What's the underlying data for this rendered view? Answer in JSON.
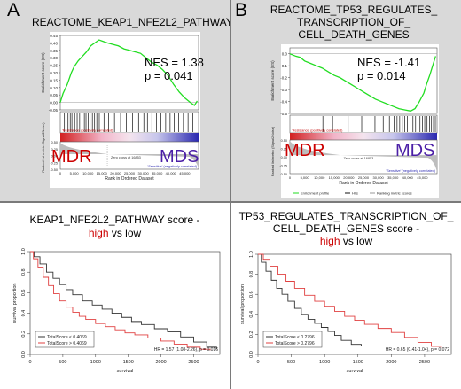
{
  "panels": {
    "A": {
      "letter": "A",
      "gsea": {
        "title": "REACTOME_KEAP1_NFE2L2_PATHWAY",
        "nes": "NES = 1.38",
        "p": "p = 0.041",
        "ylabel": "Enrichment score (ES)",
        "ylabel2": "Ranked list metric (Signal2Noise)",
        "xlabel": "Rank in Ordered Dataset",
        "pos_corr": "'Resistance' (positively correlated)",
        "neg_corr": "'Sensitive' (negatively correlated)",
        "zero_cross": "Zero cross at 16853",
        "left_group": "MDR",
        "right_group": "MDS",
        "yticks": [
          "0.45",
          "0.40",
          "0.35",
          "0.30",
          "0.25",
          "0.20",
          "0.15",
          "0.10",
          "0.05",
          "0.00",
          "-0.05"
        ],
        "y2ticks": [
          "0.50",
          "0.25",
          "0.00",
          "-0.25",
          "-0.50"
        ],
        "xticks": [
          "0",
          "5,000",
          "10,000",
          "15,000",
          "20,000",
          "25,000",
          "30,000",
          "35,000",
          "40,000",
          "45,000"
        ]
      },
      "km": {
        "title_line1": "KEAP1_NFE2L2_PATHWAY score -",
        "title_high": "high",
        "title_low": " vs low",
        "ylabel": "survival proportion",
        "xlabel": "survival",
        "legend": [
          "TotalScore < 0.4069",
          "TotalScore > 0.4069"
        ],
        "hr": "HR = 1.57 (1.08-2.26), p = 0.016",
        "xticks": [
          "0",
          "500",
          "1000",
          "1500",
          "2000",
          "2500"
        ],
        "yticks": [
          "0.0",
          "0.2",
          "0.4",
          "0.6",
          "0.8",
          "1.0"
        ]
      }
    },
    "B": {
      "letter": "B",
      "gsea": {
        "title_lines": [
          "REACTOME_TP53_REGULATES_",
          "TRANSCRIPTION_OF_",
          "CELL_DEATH_GENES"
        ],
        "nes": "NES = -1.41",
        "p": "p = 0.014",
        "ylabel": "Enrichment score (ES)",
        "ylabel2": "Ranked list metric (Signal2Noise)",
        "xlabel": "Rank in Ordered Dataset",
        "pos_corr": "'Resistance' (positively correlated)",
        "neg_corr": "'Sensitive' (negatively correlated)",
        "zero_cross": "Zero cross at 16853",
        "left_group": "MDR",
        "right_group": "MDS",
        "legend": [
          "Enrichment profile",
          "Hits",
          "Ranking metric scores"
        ],
        "yticks": [
          "0.0",
          "-0.1",
          "-0.2",
          "-0.3",
          "-0.4",
          "-0.5"
        ],
        "y2ticks": [
          "0.50",
          "0.25",
          "0.00",
          "-0.25",
          "-0.50"
        ],
        "xticks": [
          "0",
          "5,000",
          "10,000",
          "15,000",
          "20,000",
          "25,000",
          "30,000",
          "35,000",
          "40,000",
          "45,000"
        ]
      },
      "km": {
        "title_line1": "TP53_REGULATES_TRANSCRIPTION_OF_",
        "title_line2": "CELL_DEATH_GENES score -",
        "title_high": "high",
        "title_low": " vs low",
        "ylabel": "survival proportion",
        "xlabel": "survival",
        "legend": [
          "TotalScore < 0.2796",
          "TotalScore > 0.2796"
        ],
        "hr": "HR = 0.65 (0.41-1.04), p = 0.072",
        "xticks": [
          "0",
          "500",
          "1000",
          "1500",
          "2000",
          "2500"
        ],
        "yticks": [
          "0.0",
          "0.2",
          "0.4",
          "0.6",
          "0.8",
          "1.0"
        ]
      }
    }
  },
  "colors": {
    "enrichment": "#22dd22",
    "high": "#cc0000",
    "mds": "#4b1fa6",
    "low_curve": "#333333",
    "high_curve": "#e04040",
    "panel_bg": "#d9d9d9"
  },
  "chart_data": [
    {
      "type": "line",
      "title": "REACTOME_KEAP1_NFE2L2_PATHWAY",
      "xlabel": "Rank in Ordered Dataset",
      "ylabel": "Enrichment score (ES)",
      "xlim": [
        0,
        50000
      ],
      "ylim": [
        -0.05,
        0.45
      ],
      "series": [
        {
          "name": "Enrichment profile",
          "x": [
            0,
            1000,
            2500,
            4000,
            5000,
            6500,
            8000,
            9500,
            11000,
            12500,
            14000,
            15500,
            17000,
            19000,
            21000,
            23000,
            25000,
            27000,
            29000,
            31000,
            33000,
            35000,
            37000,
            39000,
            41000,
            43000,
            45000,
            47000,
            48500,
            49500
          ],
          "y": [
            0.0,
            0.06,
            0.12,
            0.2,
            0.24,
            0.28,
            0.31,
            0.34,
            0.38,
            0.4,
            0.42,
            0.41,
            0.4,
            0.39,
            0.38,
            0.36,
            0.35,
            0.34,
            0.33,
            0.3,
            0.27,
            0.25,
            0.22,
            0.18,
            0.12,
            0.07,
            0.03,
            0.0,
            -0.02,
            0.01
          ]
        }
      ],
      "hits_x": [
        1500,
        2800,
        3600,
        4200,
        5200,
        6100,
        7000,
        7800,
        8700,
        9300,
        10100,
        10800,
        11600,
        12400,
        13200,
        14100,
        15800,
        17500,
        19600,
        21800,
        23900,
        26100,
        28300,
        30200,
        31500,
        33100,
        34800,
        36400,
        38100,
        39700,
        41200,
        42800,
        44500,
        46200,
        47900
      ]
    },
    {
      "type": "line",
      "title": "REACTOME_TP53_REGULATES_TRANSCRIPTION_OF_CELL_DEATH_GENES",
      "xlabel": "Rank in Ordered Dataset",
      "ylabel": "Enrichment score (ES)",
      "xlim": [
        0,
        50000
      ],
      "ylim": [
        -0.5,
        0.05
      ],
      "series": [
        {
          "name": "Enrichment profile",
          "x": [
            0,
            1000,
            2000,
            3500,
            5000,
            7000,
            9000,
            11000,
            13000,
            15000,
            17000,
            19000,
            21000,
            23000,
            25000,
            27000,
            29000,
            31000,
            33000,
            35000,
            37000,
            39000,
            41000,
            42500,
            44000,
            45500,
            46500,
            47500,
            48500,
            49500
          ],
          "y": [
            0.0,
            -0.01,
            -0.02,
            -0.03,
            -0.06,
            -0.08,
            -0.1,
            -0.12,
            -0.15,
            -0.18,
            -0.2,
            -0.23,
            -0.26,
            -0.29,
            -0.32,
            -0.35,
            -0.38,
            -0.4,
            -0.42,
            -0.44,
            -0.46,
            -0.47,
            -0.48,
            -0.46,
            -0.4,
            -0.33,
            -0.25,
            -0.18,
            -0.1,
            -0.02
          ]
        }
      ],
      "hits_x": [
        3800,
        11200,
        14500,
        19800,
        24400,
        28900,
        31700,
        33800,
        35400,
        36400,
        37300,
        38200,
        39000,
        39900,
        40800,
        41800,
        42700,
        43500,
        44200,
        45000,
        45800,
        46600,
        47400,
        48100,
        48800,
        49400
      ]
    },
    {
      "type": "line",
      "title": "KEAP1_NFE2L2_PATHWAY score - high vs low",
      "xlabel": "survival",
      "ylabel": "survival proportion",
      "xlim": [
        0,
        2900
      ],
      "ylim": [
        0,
        1
      ],
      "series": [
        {
          "name": "TotalScore < 0.4069",
          "x": [
            0,
            60,
            150,
            250,
            350,
            450,
            550,
            650,
            800,
            950,
            1100,
            1250,
            1400,
            1550,
            1700,
            1900,
            2100,
            2300,
            2500,
            2700,
            2850
          ],
          "y": [
            1.0,
            0.95,
            0.88,
            0.8,
            0.74,
            0.68,
            0.63,
            0.58,
            0.52,
            0.48,
            0.44,
            0.4,
            0.36,
            0.32,
            0.29,
            0.25,
            0.22,
            0.17,
            0.12,
            0.07,
            0.05
          ]
        },
        {
          "name": "TotalScore > 0.4069",
          "x": [
            0,
            50,
            120,
            200,
            280,
            360,
            450,
            550,
            650,
            750,
            850,
            1000,
            1150,
            1300,
            1450,
            1600,
            1800,
            2000,
            2200,
            2400,
            2600,
            2750
          ],
          "y": [
            1.0,
            0.93,
            0.85,
            0.75,
            0.67,
            0.59,
            0.52,
            0.46,
            0.41,
            0.37,
            0.34,
            0.3,
            0.27,
            0.24,
            0.21,
            0.19,
            0.16,
            0.13,
            0.1,
            0.07,
            0.05,
            0.04
          ]
        }
      ]
    },
    {
      "type": "line",
      "title": "TP53_REGULATES_TRANSCRIPTION_OF_CELL_DEATH_GENES score - high vs low",
      "xlabel": "survival",
      "ylabel": "survival proportion",
      "xlim": [
        0,
        2900
      ],
      "ylim": [
        0,
        1
      ],
      "series": [
        {
          "name": "TotalScore < 0.2796",
          "x": [
            0,
            50,
            120,
            200,
            280,
            360,
            450,
            550,
            650,
            750,
            850,
            950,
            1050,
            1150,
            1250,
            1400,
            1550
          ],
          "y": [
            1.0,
            0.92,
            0.83,
            0.74,
            0.66,
            0.6,
            0.53,
            0.46,
            0.4,
            0.35,
            0.31,
            0.27,
            0.23,
            0.19,
            0.14,
            0.1,
            0.08
          ]
        },
        {
          "name": "TotalScore > 0.2796",
          "x": [
            0,
            80,
            180,
            300,
            420,
            550,
            700,
            850,
            1000,
            1150,
            1300,
            1450,
            1600,
            1800,
            2000,
            2200,
            2400,
            2600,
            2750
          ],
          "y": [
            1.0,
            0.95,
            0.88,
            0.8,
            0.73,
            0.66,
            0.59,
            0.53,
            0.48,
            0.43,
            0.38,
            0.34,
            0.3,
            0.26,
            0.22,
            0.17,
            0.12,
            0.08,
            0.06
          ]
        }
      ]
    }
  ]
}
